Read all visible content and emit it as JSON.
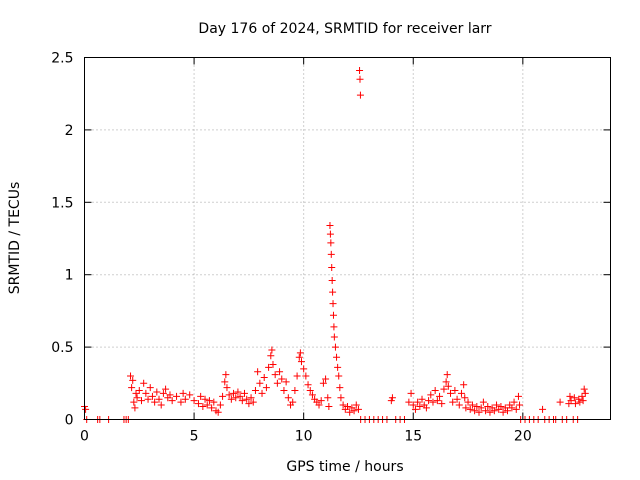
{
  "chart_data": {
    "type": "scatter",
    "title": "Day 176 of 2024, SRMTID for receiver larr",
    "xlabel": "GPS time / hours",
    "ylabel": "SRMTID / TECUs",
    "xlim": [
      0,
      24
    ],
    "ylim": [
      0,
      2.5
    ],
    "xticks": [
      0,
      5,
      10,
      15,
      20
    ],
    "xtick_labels": [
      "0",
      "5",
      "10",
      "15",
      "20"
    ],
    "yticks": [
      0,
      0.5,
      1,
      1.5,
      2,
      2.5
    ],
    "ytick_labels": [
      "0",
      "0.5",
      "1",
      "1.5",
      "2",
      "2.5"
    ],
    "grid": true,
    "marker": "+",
    "series": [
      {
        "name": "SRMTID",
        "color": "#ff0000",
        "points": [
          [
            0.0,
            0.09
          ],
          [
            0.05,
            0.07
          ],
          [
            0.1,
            0.0
          ],
          [
            0.6,
            0.0
          ],
          [
            0.7,
            0.0
          ],
          [
            1.1,
            0.0
          ],
          [
            1.8,
            0.0
          ],
          [
            1.9,
            0.0
          ],
          [
            2.0,
            0.0
          ],
          [
            2.1,
            0.3
          ],
          [
            2.15,
            0.22
          ],
          [
            2.2,
            0.27
          ],
          [
            2.25,
            0.12
          ],
          [
            2.3,
            0.08
          ],
          [
            2.35,
            0.18
          ],
          [
            2.4,
            0.15
          ],
          [
            2.5,
            0.2
          ],
          [
            2.6,
            0.13
          ],
          [
            2.7,
            0.25
          ],
          [
            2.8,
            0.18
          ],
          [
            2.9,
            0.14
          ],
          [
            3.0,
            0.22
          ],
          [
            3.1,
            0.16
          ],
          [
            3.2,
            0.12
          ],
          [
            3.3,
            0.19
          ],
          [
            3.4,
            0.14
          ],
          [
            3.5,
            0.1
          ],
          [
            3.6,
            0.18
          ],
          [
            3.7,
            0.21
          ],
          [
            3.8,
            0.15
          ],
          [
            3.9,
            0.17
          ],
          [
            4.0,
            0.13
          ],
          [
            4.2,
            0.16
          ],
          [
            4.4,
            0.12
          ],
          [
            4.5,
            0.18
          ],
          [
            4.6,
            0.14
          ],
          [
            4.8,
            0.17
          ],
          [
            5.0,
            0.13
          ],
          [
            5.2,
            0.11
          ],
          [
            5.3,
            0.16
          ],
          [
            5.4,
            0.09
          ],
          [
            5.5,
            0.14
          ],
          [
            5.6,
            0.1
          ],
          [
            5.7,
            0.13
          ],
          [
            5.8,
            0.08
          ],
          [
            5.9,
            0.12
          ],
          [
            6.0,
            0.06
          ],
          [
            6.1,
            0.05
          ],
          [
            6.2,
            0.1
          ],
          [
            6.3,
            0.16
          ],
          [
            6.4,
            0.26
          ],
          [
            6.45,
            0.31
          ],
          [
            6.5,
            0.22
          ],
          [
            6.6,
            0.17
          ],
          [
            6.7,
            0.14
          ],
          [
            6.8,
            0.18
          ],
          [
            6.9,
            0.15
          ],
          [
            7.0,
            0.19
          ],
          [
            7.1,
            0.16
          ],
          [
            7.2,
            0.13
          ],
          [
            7.3,
            0.18
          ],
          [
            7.4,
            0.14
          ],
          [
            7.5,
            0.11
          ],
          [
            7.6,
            0.15
          ],
          [
            7.7,
            0.12
          ],
          [
            7.8,
            0.2
          ],
          [
            7.9,
            0.33
          ],
          [
            8.0,
            0.25
          ],
          [
            8.1,
            0.18
          ],
          [
            8.2,
            0.29
          ],
          [
            8.3,
            0.22
          ],
          [
            8.4,
            0.36
          ],
          [
            8.5,
            0.44
          ],
          [
            8.55,
            0.48
          ],
          [
            8.6,
            0.38
          ],
          [
            8.7,
            0.31
          ],
          [
            8.8,
            0.25
          ],
          [
            8.9,
            0.33
          ],
          [
            9.0,
            0.28
          ],
          [
            9.1,
            0.2
          ],
          [
            9.2,
            0.26
          ],
          [
            9.3,
            0.15
          ],
          [
            9.4,
            0.1
          ],
          [
            9.5,
            0.12
          ],
          [
            9.6,
            0.2
          ],
          [
            9.7,
            0.3
          ],
          [
            9.8,
            0.43
          ],
          [
            9.85,
            0.46
          ],
          [
            9.9,
            0.4
          ],
          [
            10.0,
            0.35
          ],
          [
            10.1,
            0.3
          ],
          [
            10.2,
            0.24
          ],
          [
            10.3,
            0.2
          ],
          [
            10.4,
            0.17
          ],
          [
            10.5,
            0.14
          ],
          [
            10.6,
            0.12
          ],
          [
            10.7,
            0.1
          ],
          [
            10.8,
            0.13
          ],
          [
            10.9,
            0.25
          ],
          [
            11.0,
            0.28
          ],
          [
            11.1,
            0.15
          ],
          [
            11.15,
            0.09
          ],
          [
            11.2,
            1.34
          ],
          [
            11.22,
            1.28
          ],
          [
            11.24,
            1.22
          ],
          [
            11.26,
            1.14
          ],
          [
            11.28,
            1.05
          ],
          [
            11.3,
            0.96
          ],
          [
            11.32,
            0.88
          ],
          [
            11.34,
            0.8
          ],
          [
            11.36,
            0.72
          ],
          [
            11.38,
            0.64
          ],
          [
            11.4,
            0.57
          ],
          [
            11.45,
            0.5
          ],
          [
            11.5,
            0.43
          ],
          [
            11.55,
            0.36
          ],
          [
            11.6,
            0.3
          ],
          [
            11.65,
            0.22
          ],
          [
            11.7,
            0.15
          ],
          [
            11.8,
            0.1
          ],
          [
            11.9,
            0.07
          ],
          [
            12.0,
            0.09
          ],
          [
            12.1,
            0.05
          ],
          [
            12.2,
            0.08
          ],
          [
            12.3,
            0.06
          ],
          [
            12.4,
            0.1
          ],
          [
            12.5,
            0.07
          ],
          [
            12.55,
            2.41
          ],
          [
            12.57,
            2.35
          ],
          [
            12.59,
            2.24
          ],
          [
            12.6,
            0.0
          ],
          [
            12.8,
            0.0
          ],
          [
            13.0,
            0.0
          ],
          [
            13.2,
            0.0
          ],
          [
            13.4,
            0.0
          ],
          [
            13.6,
            0.0
          ],
          [
            13.8,
            0.0
          ],
          [
            14.0,
            0.13
          ],
          [
            14.05,
            0.15
          ],
          [
            14.2,
            0.0
          ],
          [
            14.4,
            0.0
          ],
          [
            14.6,
            0.0
          ],
          [
            14.8,
            0.12
          ],
          [
            14.9,
            0.18
          ],
          [
            15.0,
            0.1
          ],
          [
            15.1,
            0.07
          ],
          [
            15.2,
            0.12
          ],
          [
            15.3,
            0.09
          ],
          [
            15.4,
            0.14
          ],
          [
            15.5,
            0.1
          ],
          [
            15.6,
            0.08
          ],
          [
            15.7,
            0.13
          ],
          [
            15.8,
            0.17
          ],
          [
            15.9,
            0.12
          ],
          [
            16.0,
            0.2
          ],
          [
            16.1,
            0.13
          ],
          [
            16.2,
            0.16
          ],
          [
            16.3,
            0.11
          ],
          [
            16.4,
            0.21
          ],
          [
            16.5,
            0.26
          ],
          [
            16.55,
            0.31
          ],
          [
            16.6,
            0.23
          ],
          [
            16.7,
            0.18
          ],
          [
            16.8,
            0.12
          ],
          [
            16.9,
            0.2
          ],
          [
            17.0,
            0.14
          ],
          [
            17.1,
            0.1
          ],
          [
            17.2,
            0.18
          ],
          [
            17.3,
            0.24
          ],
          [
            17.35,
            0.15
          ],
          [
            17.4,
            0.08
          ],
          [
            17.5,
            0.12
          ],
          [
            17.6,
            0.07
          ],
          [
            17.7,
            0.1
          ],
          [
            17.8,
            0.06
          ],
          [
            17.9,
            0.09
          ],
          [
            18.0,
            0.05
          ],
          [
            18.1,
            0.08
          ],
          [
            18.2,
            0.12
          ],
          [
            18.3,
            0.06
          ],
          [
            18.4,
            0.09
          ],
          [
            18.5,
            0.05
          ],
          [
            18.6,
            0.08
          ],
          [
            18.7,
            0.06
          ],
          [
            18.8,
            0.1
          ],
          [
            18.9,
            0.07
          ],
          [
            19.0,
            0.09
          ],
          [
            19.1,
            0.05
          ],
          [
            19.2,
            0.08
          ],
          [
            19.3,
            0.06
          ],
          [
            19.4,
            0.1
          ],
          [
            19.5,
            0.08
          ],
          [
            19.6,
            0.12
          ],
          [
            19.7,
            0.07
          ],
          [
            19.8,
            0.16
          ],
          [
            19.85,
            0.1
          ],
          [
            19.9,
            0.0
          ],
          [
            20.1,
            0.0
          ],
          [
            20.3,
            0.0
          ],
          [
            20.5,
            0.0
          ],
          [
            20.7,
            0.0
          ],
          [
            20.9,
            0.07
          ],
          [
            21.0,
            0.0
          ],
          [
            21.2,
            0.0
          ],
          [
            21.4,
            0.0
          ],
          [
            21.5,
            0.0
          ],
          [
            21.7,
            0.12
          ],
          [
            21.8,
            0.0
          ],
          [
            22.0,
            0.0
          ],
          [
            22.1,
            0.11
          ],
          [
            22.15,
            0.16
          ],
          [
            22.2,
            0.13
          ],
          [
            22.3,
            0.0
          ],
          [
            22.35,
            0.15
          ],
          [
            22.4,
            0.11
          ],
          [
            22.5,
            0.0
          ],
          [
            22.55,
            0.14
          ],
          [
            22.6,
            0.12
          ],
          [
            22.7,
            0.16
          ],
          [
            22.75,
            0.13
          ],
          [
            22.8,
            0.21
          ],
          [
            22.85,
            0.18
          ]
        ]
      }
    ]
  }
}
